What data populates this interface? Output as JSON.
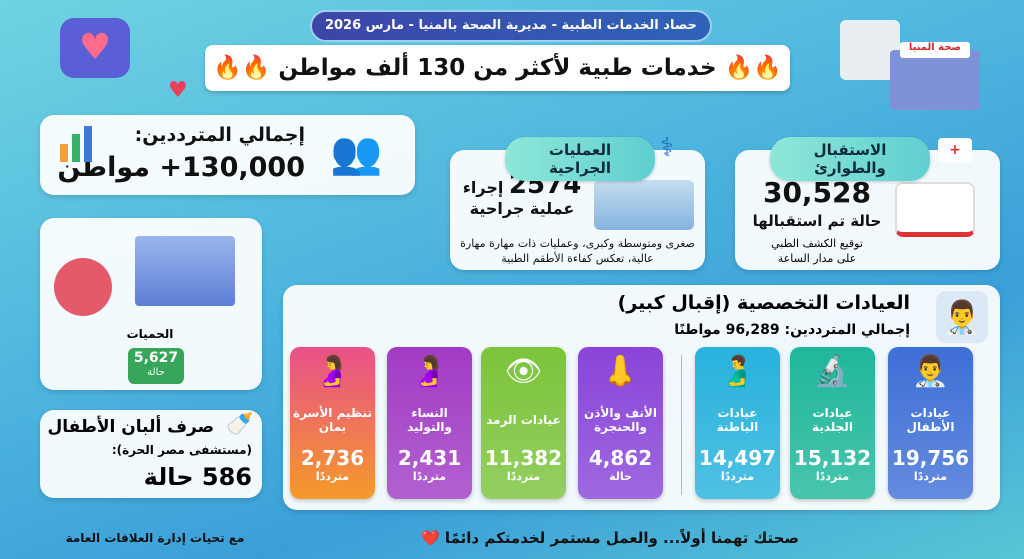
{
  "header": {
    "subtitle": "حصاد الخدمات الطبية - مديرية الصحة بالمنيا - مارس 2026",
    "title": "خدمات طبية لأكثر من 130 ألف مواطن",
    "title_emoji": "🔥🔥"
  },
  "total": {
    "label": "إجمالي المترددين:",
    "value": "130,000+ مواطن"
  },
  "surgery": {
    "title": "العمليات الجراحية",
    "value": "2574",
    "unit1": "إجراء",
    "unit2": "عملية جراحية",
    "desc": "صغرى ومتوسطة وكبرى، وعمليات ذات مهارة مهارة عالية، تعكس كفاءة الأطقم الطبية"
  },
  "emergency": {
    "title": "الاستقبال والطوارئ",
    "value": "30,528",
    "unit": "حالة تم استقبالها",
    "desc1": "توقيع الكشف الطبي",
    "desc2": "على مدار الساعة"
  },
  "fevers": {
    "label": "الحميات",
    "value": "5,627",
    "unit": "حالة"
  },
  "milk": {
    "title": "صرف ألبان الأطفال",
    "sub": "(مستشفى مصر الحرة):",
    "value": "586 حالة"
  },
  "clinics": {
    "title": "العيادات التخصصية (إقبال كبير)",
    "total": "إجمالي المترددين: 96,289 مواطنًا",
    "items": [
      {
        "name": "عيادات الأطفال",
        "value": "19,756",
        "unit": "مترددًا",
        "color": "#3f6fd6",
        "icon": "doctor-child-icon"
      },
      {
        "name": "عيادات الجلدية",
        "value": "15,132",
        "unit": "مترددًا",
        "color": "#1fb79a",
        "icon": "microscope-icon"
      },
      {
        "name": "عيادات الباطنة",
        "value": "14,497",
        "unit": "مترددًا",
        "color": "#27b2dc",
        "icon": "stomach-icon"
      },
      {
        "name": "الأنف والأذن والحنجرة",
        "value": "4,862",
        "unit": "حالة",
        "color": "#8a44d8",
        "icon": "ent-icon"
      },
      {
        "name": "عيادات الرمد",
        "value": "11,382",
        "unit": "مترددًا",
        "color": "#7cc43a",
        "icon": "eye-icon"
      },
      {
        "name": "النساء والتوليد",
        "value": "2,431",
        "unit": "مترددًا",
        "color": "#a23bc4",
        "icon": "pregnancy-icon"
      },
      {
        "name": "تنظيم الأسرة بمان",
        "value": "2,736",
        "unit": "مترددًا",
        "color": "#f06a5a",
        "icon": "family-planning-icon"
      }
    ]
  },
  "footer": {
    "slogan": "صحتك تهمنا أولاً... والعمل مستمر لخدمتكم دائمًا ❤️",
    "credit": "مع تحيات إدارة العلاقات العامة"
  },
  "hospital_sign": "صحة المنيا"
}
